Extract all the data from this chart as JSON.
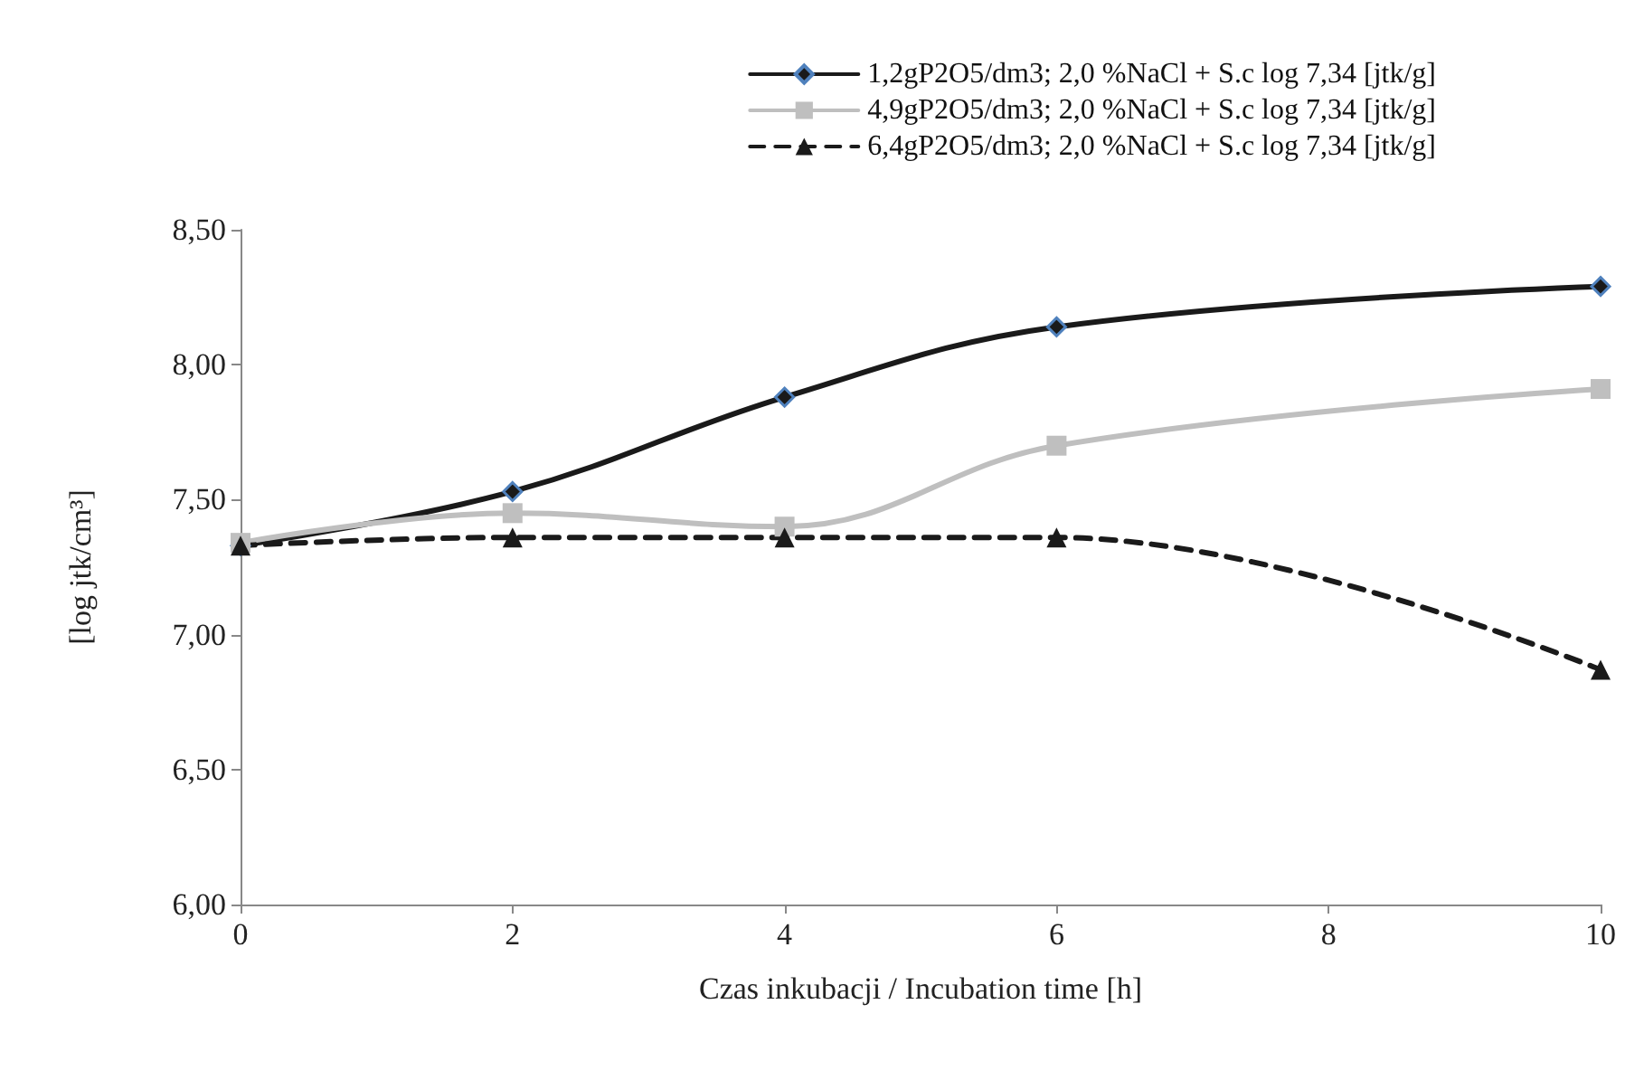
{
  "chart_data": {
    "type": "line",
    "xlabel": "Czas inkubacji / Incubation time [h]",
    "ylabel": "[log jtk/cm³]",
    "x": [
      0,
      2,
      4,
      6,
      10
    ],
    "series": [
      {
        "name": "1,2gP2O5/dm3; 2,0 %NaCl + S.c log 7,34 [jtk/g]",
        "color": "#1a1a1a",
        "marker": "diamond",
        "line_style": "solid",
        "values": [
          7.33,
          7.53,
          7.88,
          8.14,
          8.29
        ]
      },
      {
        "name": "4,9gP2O5/dm3; 2,0 %NaCl + S.c log 7,34 [jtk/g]",
        "color": "#bfbfbf",
        "marker": "square",
        "line_style": "solid",
        "values": [
          7.34,
          7.45,
          7.4,
          7.7,
          7.91
        ]
      },
      {
        "name": "6,4gP2O5/dm3; 2,0 %NaCl + S.c log 7,34 [jtk/g]",
        "color": "#1a1a1a",
        "marker": "triangle",
        "line_style": "dashed",
        "values": [
          7.33,
          7.36,
          7.36,
          7.36,
          6.87
        ]
      }
    ],
    "xlim": [
      0,
      10
    ],
    "xticks": [
      0,
      2,
      4,
      6,
      8,
      10
    ],
    "ylim": [
      6,
      8.5
    ],
    "yticks": [
      {
        "value": 6,
        "label": "6,00"
      },
      {
        "value": 6.5,
        "label": "6,50"
      },
      {
        "value": 7,
        "label": "7,00"
      },
      {
        "value": 7.5,
        "label": "7,50"
      },
      {
        "value": 8,
        "label": "8,00"
      },
      {
        "value": 8.5,
        "label": "8,50"
      }
    ],
    "grid": false,
    "legend": "top right"
  }
}
